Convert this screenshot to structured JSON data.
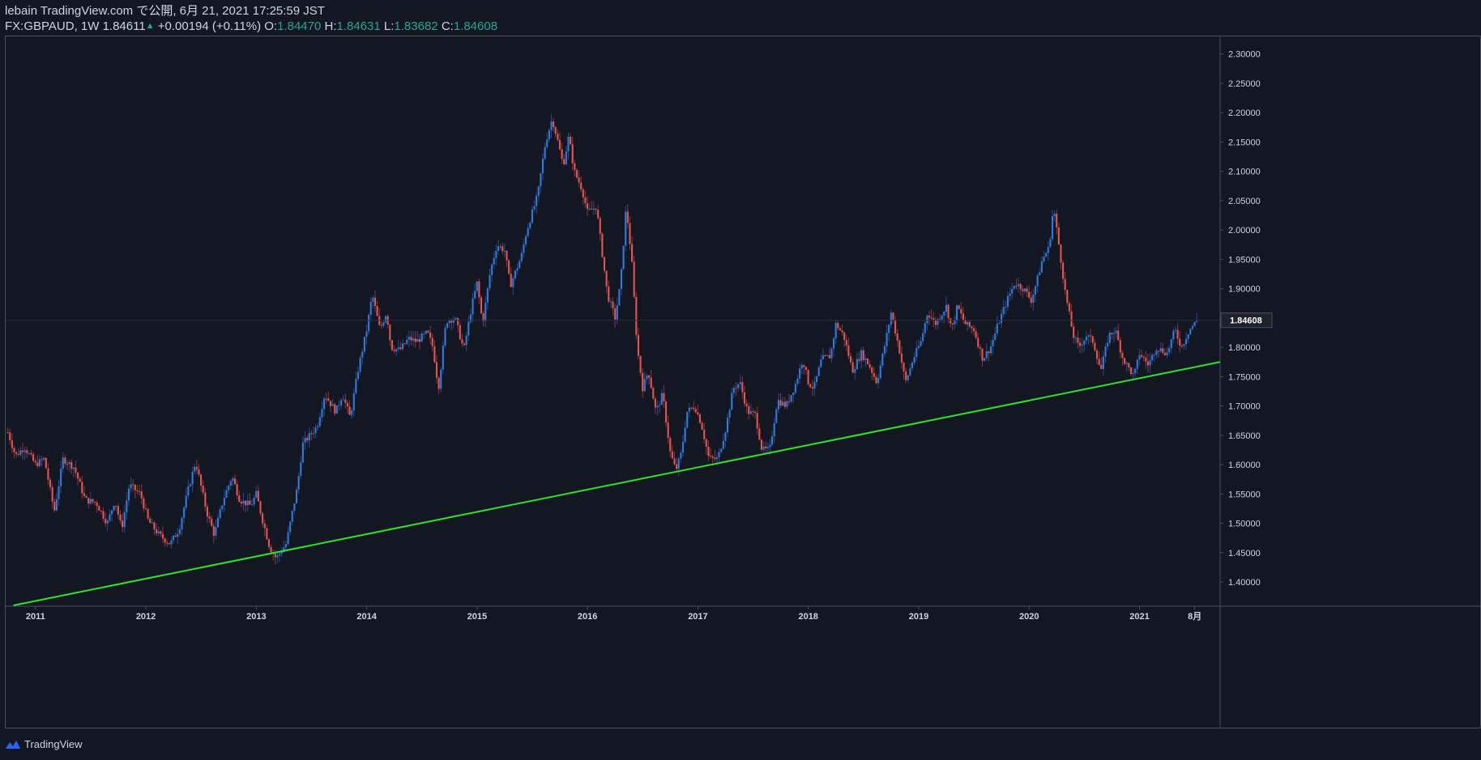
{
  "header": {
    "line1": "lebain TradingView.com で公開, 6月 21, 2021 17:25:59 JST",
    "symbol": "FX:GBPAUD, 1W",
    "last": "1.84611",
    "change": "+0.00194 (+0.11%)",
    "o_label": "O:",
    "o_val": "1.84470",
    "h_label": "H:",
    "h_val": "1.84631",
    "l_label": "L:",
    "l_val": "1.83682",
    "c_label": "C:",
    "c_val": "1.84608"
  },
  "footer": {
    "brand": "TradingView"
  },
  "colors": {
    "background": "#131722",
    "up": "#2f7be0",
    "down": "#e8544f",
    "trendline": "#27e72a",
    "axis_text": "#d1d4dc",
    "border": "#4a4e59"
  },
  "chart_data": {
    "type": "candlestick",
    "symbol": "FX:GBPAUD",
    "interval": "1W",
    "price_badge": "1.84608",
    "x_ticks": [
      "2011",
      "2012",
      "2013",
      "2014",
      "2015",
      "2016",
      "2017",
      "2018",
      "2019",
      "2020",
      "2021",
      "8月"
    ],
    "x_tick_dates": [
      2011,
      2012,
      2013,
      2014,
      2015,
      2016,
      2017,
      2018,
      2019,
      2020,
      2021,
      2021.5
    ],
    "y_ticks": [
      "2.30000",
      "2.25000",
      "2.20000",
      "2.15000",
      "2.10000",
      "2.05000",
      "2.00000",
      "1.95000",
      "1.90000",
      "1.85000",
      "1.80000",
      "1.75000",
      "1.70000",
      "1.65000",
      "1.60000",
      "1.55000",
      "1.50000",
      "1.45000",
      "1.40000"
    ],
    "ylim": [
      1.36,
      2.33
    ],
    "xlim": [
      2010.73,
      2021.73
    ],
    "trendline": {
      "start": [
        2010.8,
        1.36
      ],
      "end": [
        2021.73,
        1.775
      ]
    },
    "anchors": [
      [
        2010.75,
        1.655
      ],
      [
        2010.82,
        1.615
      ],
      [
        2010.9,
        1.63
      ],
      [
        2011.0,
        1.6
      ],
      [
        2011.08,
        1.61
      ],
      [
        2011.17,
        1.52
      ],
      [
        2011.25,
        1.61
      ],
      [
        2011.35,
        1.595
      ],
      [
        2011.45,
        1.54
      ],
      [
        2011.55,
        1.535
      ],
      [
        2011.65,
        1.5
      ],
      [
        2011.72,
        1.54
      ],
      [
        2011.78,
        1.49
      ],
      [
        2011.85,
        1.565
      ],
      [
        2011.95,
        1.55
      ],
      [
        2012.02,
        1.505
      ],
      [
        2012.12,
        1.48
      ],
      [
        2012.22,
        1.465
      ],
      [
        2012.3,
        1.49
      ],
      [
        2012.38,
        1.555
      ],
      [
        2012.45,
        1.605
      ],
      [
        2012.55,
        1.52
      ],
      [
        2012.62,
        1.48
      ],
      [
        2012.7,
        1.54
      ],
      [
        2012.78,
        1.58
      ],
      [
        2012.85,
        1.54
      ],
      [
        2012.95,
        1.53
      ],
      [
        2013.0,
        1.55
      ],
      [
        2013.05,
        1.51
      ],
      [
        2013.12,
        1.46
      ],
      [
        2013.18,
        1.44
      ],
      [
        2013.27,
        1.465
      ],
      [
        2013.37,
        1.56
      ],
      [
        2013.42,
        1.635
      ],
      [
        2013.55,
        1.665
      ],
      [
        2013.62,
        1.72
      ],
      [
        2013.72,
        1.69
      ],
      [
        2013.78,
        1.72
      ],
      [
        2013.85,
        1.68
      ],
      [
        2013.92,
        1.76
      ],
      [
        2014.0,
        1.83
      ],
      [
        2014.05,
        1.89
      ],
      [
        2014.12,
        1.83
      ],
      [
        2014.18,
        1.86
      ],
      [
        2014.22,
        1.8
      ],
      [
        2014.3,
        1.795
      ],
      [
        2014.38,
        1.815
      ],
      [
        2014.45,
        1.81
      ],
      [
        2014.55,
        1.825
      ],
      [
        2014.6,
        1.8
      ],
      [
        2014.65,
        1.73
      ],
      [
        2014.72,
        1.845
      ],
      [
        2014.8,
        1.85
      ],
      [
        2014.88,
        1.795
      ],
      [
        2014.95,
        1.87
      ],
      [
        2015.0,
        1.91
      ],
      [
        2015.05,
        1.84
      ],
      [
        2015.12,
        1.93
      ],
      [
        2015.18,
        1.975
      ],
      [
        2015.25,
        1.965
      ],
      [
        2015.3,
        1.905
      ],
      [
        2015.4,
        1.955
      ],
      [
        2015.45,
        2.0
      ],
      [
        2015.55,
        2.06
      ],
      [
        2015.58,
        2.1
      ],
      [
        2015.62,
        2.15
      ],
      [
        2015.68,
        2.19
      ],
      [
        2015.72,
        2.16
      ],
      [
        2015.78,
        2.11
      ],
      [
        2015.83,
        2.16
      ],
      [
        2015.88,
        2.1
      ],
      [
        2015.95,
        2.07
      ],
      [
        2016.0,
        2.03
      ],
      [
        2016.08,
        2.04
      ],
      [
        2016.12,
        1.98
      ],
      [
        2016.18,
        1.89
      ],
      [
        2016.25,
        1.85
      ],
      [
        2016.3,
        1.91
      ],
      [
        2016.35,
        2.04
      ],
      [
        2016.4,
        1.95
      ],
      [
        2016.45,
        1.8
      ],
      [
        2016.5,
        1.73
      ],
      [
        2016.55,
        1.76
      ],
      [
        2016.62,
        1.69
      ],
      [
        2016.68,
        1.72
      ],
      [
        2016.75,
        1.62
      ],
      [
        2016.8,
        1.59
      ],
      [
        2016.85,
        1.62
      ],
      [
        2016.9,
        1.69
      ],
      [
        2016.97,
        1.7
      ],
      [
        2017.03,
        1.67
      ],
      [
        2017.1,
        1.61
      ],
      [
        2017.18,
        1.61
      ],
      [
        2017.25,
        1.66
      ],
      [
        2017.32,
        1.73
      ],
      [
        2017.38,
        1.74
      ],
      [
        2017.45,
        1.69
      ],
      [
        2017.52,
        1.685
      ],
      [
        2017.58,
        1.625
      ],
      [
        2017.65,
        1.625
      ],
      [
        2017.72,
        1.71
      ],
      [
        2017.8,
        1.7
      ],
      [
        2017.88,
        1.735
      ],
      [
        2017.95,
        1.78
      ],
      [
        2018.0,
        1.74
      ],
      [
        2018.05,
        1.73
      ],
      [
        2018.12,
        1.78
      ],
      [
        2018.2,
        1.785
      ],
      [
        2018.25,
        1.84
      ],
      [
        2018.32,
        1.82
      ],
      [
        2018.4,
        1.76
      ],
      [
        2018.48,
        1.79
      ],
      [
        2018.55,
        1.77
      ],
      [
        2018.62,
        1.74
      ],
      [
        2018.7,
        1.81
      ],
      [
        2018.75,
        1.86
      ],
      [
        2018.82,
        1.8
      ],
      [
        2018.88,
        1.74
      ],
      [
        2018.95,
        1.78
      ],
      [
        2019.02,
        1.81
      ],
      [
        2019.08,
        1.86
      ],
      [
        2019.15,
        1.84
      ],
      [
        2019.25,
        1.87
      ],
      [
        2019.3,
        1.83
      ],
      [
        2019.35,
        1.87
      ],
      [
        2019.42,
        1.84
      ],
      [
        2019.5,
        1.83
      ],
      [
        2019.58,
        1.78
      ],
      [
        2019.65,
        1.8
      ],
      [
        2019.72,
        1.84
      ],
      [
        2019.8,
        1.88
      ],
      [
        2019.87,
        1.91
      ],
      [
        2019.95,
        1.9
      ],
      [
        2020.02,
        1.88
      ],
      [
        2020.08,
        1.92
      ],
      [
        2020.12,
        1.95
      ],
      [
        2020.18,
        1.97
      ],
      [
        2020.22,
        2.04
      ],
      [
        2020.28,
        1.96
      ],
      [
        2020.33,
        1.89
      ],
      [
        2020.4,
        1.82
      ],
      [
        2020.45,
        1.8
      ],
      [
        2020.52,
        1.82
      ],
      [
        2020.58,
        1.81
      ],
      [
        2020.65,
        1.76
      ],
      [
        2020.72,
        1.82
      ],
      [
        2020.78,
        1.83
      ],
      [
        2020.85,
        1.78
      ],
      [
        2020.95,
        1.75
      ],
      [
        2021.0,
        1.79
      ],
      [
        2021.08,
        1.77
      ],
      [
        2021.15,
        1.8
      ],
      [
        2021.25,
        1.79
      ],
      [
        2021.32,
        1.83
      ],
      [
        2021.38,
        1.8
      ],
      [
        2021.45,
        1.83
      ],
      [
        2021.52,
        1.845
      ]
    ]
  }
}
